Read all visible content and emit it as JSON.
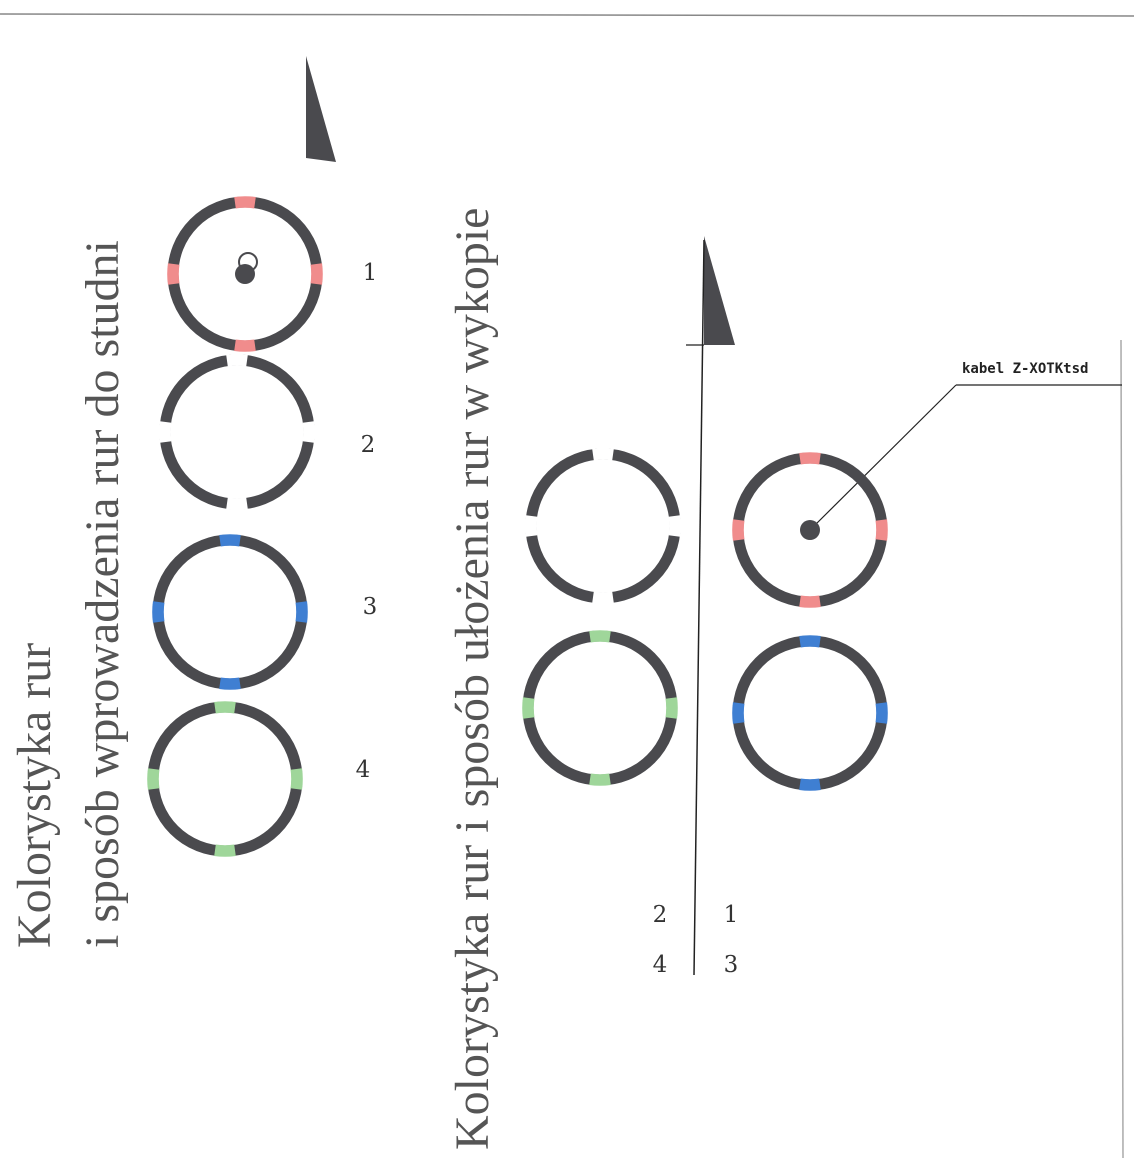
{
  "left_title_line1": "Kolorystyka rur",
  "left_title_line2": "i sposób wprowadzenia rur do studni",
  "right_title": "Kolorystyka rur i sposób ułożenia rur w wykopie",
  "cable_label": "kabel Z-XOTKtsd",
  "colors": {
    "ring": "#4a4a4e",
    "red": "#f08c8c",
    "blue": "#3f7fd2",
    "green": "#9fd69a",
    "white": "#ffffff",
    "line": "#222222"
  },
  "left_pipes": [
    {
      "label": "1",
      "marker": "red",
      "has_cable": true
    },
    {
      "label": "2",
      "marker": "white",
      "has_cable": false
    },
    {
      "label": "3",
      "marker": "blue",
      "has_cable": false
    },
    {
      "label": "4",
      "marker": "green",
      "has_cable": false
    }
  ],
  "right_pipes": [
    {
      "label": "1",
      "marker": "red",
      "has_cable": true
    },
    {
      "label": "2",
      "marker": "white",
      "has_cable": false
    },
    {
      "label": "3",
      "marker": "blue",
      "has_cable": false
    },
    {
      "label": "4",
      "marker": "green",
      "has_cable": false
    }
  ],
  "arrangement_grid": [
    [
      "2",
      "1"
    ],
    [
      "4",
      "3"
    ]
  ]
}
